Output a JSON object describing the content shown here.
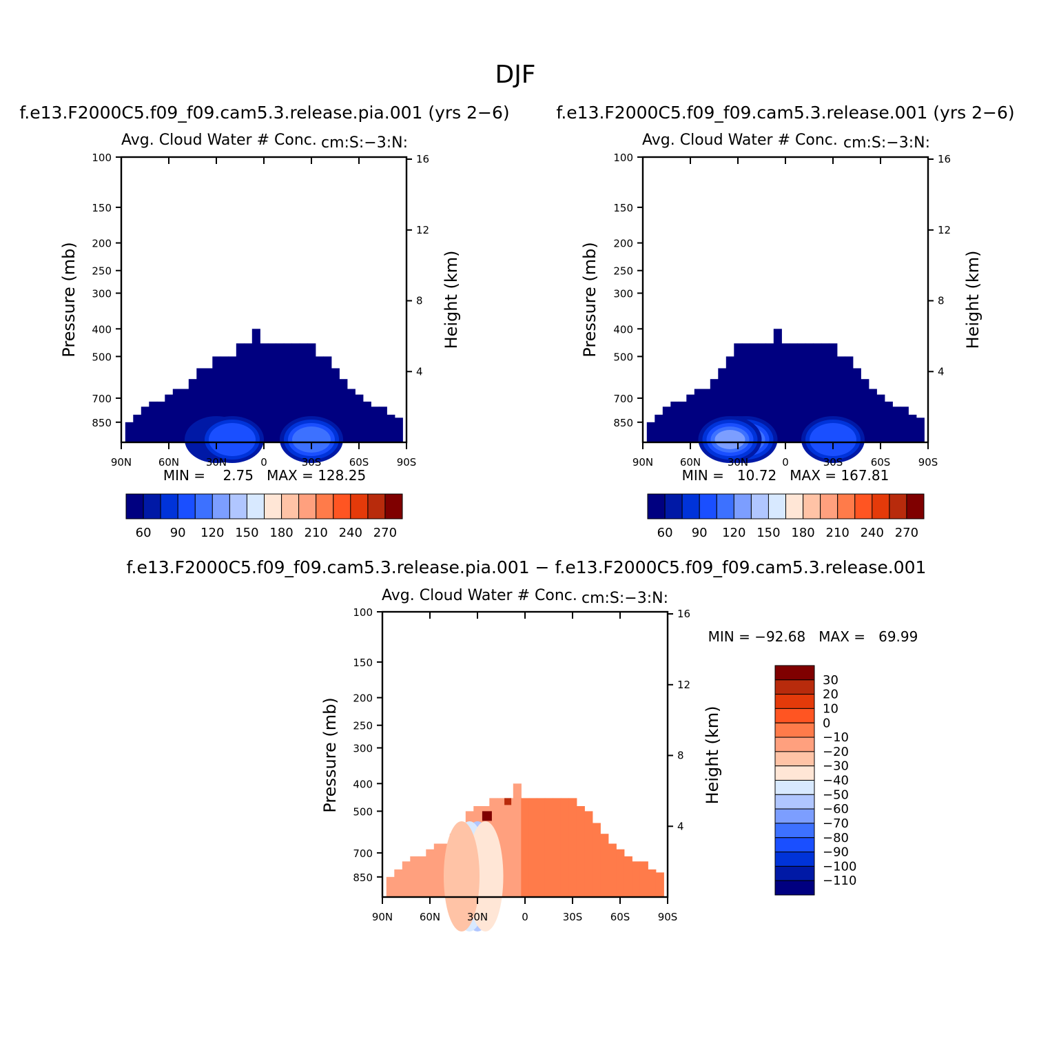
{
  "figure": {
    "title": "DJF",
    "colors": {
      "abs_palette": [
        "#000080",
        "#0019a6",
        "#0033d9",
        "#1a4fff",
        "#3d71ff",
        "#7c9eff",
        "#b0c6ff",
        "#d8e9ff",
        "#ffe6d6",
        "#ffc3a6",
        "#ffa07e",
        "#ff7b4a",
        "#ff5522",
        "#e43a0a",
        "#b82b0c",
        "#7f0000"
      ],
      "diff_palette": [
        "#7f0000",
        "#b82b0c",
        "#e43a0a",
        "#ff5522",
        "#ff7b4a",
        "#ffa07e",
        "#ffc3a6",
        "#ffe6d6",
        "#d8e9ff",
        "#b0c6ff",
        "#7c9eff",
        "#3d71ff",
        "#1a4fff",
        "#0033d9",
        "#0019a6",
        "#000080"
      ]
    }
  },
  "panels": [
    {
      "case_title": "f.e13.F2000C5.f09_f09.cam5.3.release.pia.001 (yrs 2−6)",
      "left_title": "Avg. Cloud Water # Conc.",
      "right_title": "cm:S:−3:N:",
      "ylabel": "Pressure (mb)",
      "ylabel_right": "Height (km)",
      "min_max": "MIN =    2.75   MAX = 128.25"
    },
    {
      "case_title": "f.e13.F2000C5.f09_f09.cam5.3.release.001 (yrs 2−6)",
      "left_title": "Avg. Cloud Water # Conc.",
      "right_title": "cm:S:−3:N:",
      "ylabel": "Pressure (mb)",
      "ylabel_right": "Height (km)",
      "min_max": "MIN =   10.72   MAX = 167.81"
    },
    {
      "case_title": "f.e13.F2000C5.f09_f09.cam5.3.release.pia.001 − f.e13.F2000C5.f09_f09.cam5.3.release.001",
      "left_title": "Avg. Cloud Water # Conc.",
      "right_title": "cm:S:−3:N:",
      "ylabel": "Pressure (mb)",
      "ylabel_right": "Height (km)",
      "min_max": "MIN = −92.68   MAX =   69.99"
    }
  ],
  "chart_data": [
    {
      "type": "heatmap",
      "title": "Avg. Cloud Water # Conc.",
      "xlabel": "",
      "ylabel": "Pressure (mb)",
      "ylabel_right": "Height (km)",
      "x_ticks": [
        "90N",
        "60N",
        "30N",
        "0",
        "30S",
        "60S",
        "90S"
      ],
      "y_ticks": [
        100,
        150,
        200,
        250,
        300,
        400,
        500,
        700,
        850
      ],
      "y_ticks_right": [
        16,
        12,
        8,
        4
      ],
      "ylim": [
        100,
        1000
      ],
      "y_scale": "log",
      "colorbar_labels": [
        "60",
        "90",
        "120",
        "150",
        "180",
        "210",
        "240",
        "270"
      ],
      "min": 2.75,
      "max": 128.25,
      "field_top_pressure": [
        [
          85,
          850
        ],
        [
          80,
          800
        ],
        [
          75,
          750
        ],
        [
          70,
          720
        ],
        [
          65,
          720
        ],
        [
          60,
          680
        ],
        [
          55,
          650
        ],
        [
          50,
          650
        ],
        [
          45,
          600
        ],
        [
          40,
          550
        ],
        [
          35,
          550
        ],
        [
          30,
          500
        ],
        [
          25,
          500
        ],
        [
          20,
          500
        ],
        [
          15,
          450
        ],
        [
          10,
          450
        ],
        [
          5,
          400
        ],
        [
          0,
          450
        ],
        [
          -5,
          450
        ],
        [
          -10,
          450
        ],
        [
          -15,
          450
        ],
        [
          -20,
          450
        ],
        [
          -25,
          450
        ],
        [
          -30,
          450
        ],
        [
          -35,
          500
        ],
        [
          -40,
          500
        ],
        [
          -45,
          550
        ],
        [
          -50,
          600
        ],
        [
          -55,
          650
        ],
        [
          -60,
          680
        ],
        [
          -65,
          720
        ],
        [
          -70,
          750
        ],
        [
          -75,
          750
        ],
        [
          -80,
          800
        ],
        [
          -85,
          820
        ]
      ]
    },
    {
      "type": "heatmap",
      "title": "Avg. Cloud Water # Conc.",
      "xlabel": "",
      "ylabel": "Pressure (mb)",
      "ylabel_right": "Height (km)",
      "x_ticks": [
        "90N",
        "60N",
        "30N",
        "0",
        "30S",
        "60S",
        "90S"
      ],
      "y_ticks": [
        100,
        150,
        200,
        250,
        300,
        400,
        500,
        700,
        850
      ],
      "y_ticks_right": [
        16,
        12,
        8,
        4
      ],
      "ylim": [
        100,
        1000
      ],
      "y_scale": "log",
      "colorbar_labels": [
        "60",
        "90",
        "120",
        "150",
        "180",
        "210",
        "240",
        "270"
      ],
      "min": 10.72,
      "max": 167.81,
      "field_top_pressure": [
        [
          85,
          850
        ],
        [
          80,
          800
        ],
        [
          75,
          750
        ],
        [
          70,
          720
        ],
        [
          65,
          720
        ],
        [
          60,
          680
        ],
        [
          55,
          650
        ],
        [
          50,
          650
        ],
        [
          45,
          600
        ],
        [
          40,
          550
        ],
        [
          35,
          500
        ],
        [
          30,
          450
        ],
        [
          25,
          450
        ],
        [
          20,
          450
        ],
        [
          15,
          450
        ],
        [
          10,
          450
        ],
        [
          5,
          400
        ],
        [
          0,
          450
        ],
        [
          -5,
          450
        ],
        [
          -10,
          450
        ],
        [
          -15,
          450
        ],
        [
          -20,
          450
        ],
        [
          -25,
          450
        ],
        [
          -30,
          450
        ],
        [
          -35,
          500
        ],
        [
          -40,
          500
        ],
        [
          -45,
          550
        ],
        [
          -50,
          600
        ],
        [
          -55,
          650
        ],
        [
          -60,
          680
        ],
        [
          -65,
          720
        ],
        [
          -70,
          750
        ],
        [
          -75,
          750
        ],
        [
          -80,
          800
        ],
        [
          -85,
          820
        ]
      ]
    },
    {
      "type": "heatmap",
      "title": "Avg. Cloud Water # Conc.",
      "xlabel": "",
      "ylabel": "Pressure (mb)",
      "ylabel_right": "Height (km)",
      "x_ticks": [
        "90N",
        "60N",
        "30N",
        "0",
        "30S",
        "60S",
        "90S"
      ],
      "y_ticks": [
        100,
        150,
        200,
        250,
        300,
        400,
        500,
        700,
        850
      ],
      "y_ticks_right": [
        16,
        12,
        8,
        4
      ],
      "ylim": [
        100,
        1000
      ],
      "y_scale": "log",
      "colorbar_labels": [
        "30",
        "20",
        "10",
        "0",
        "−10",
        "−20",
        "−30",
        "−40",
        "−50",
        "−60",
        "−70",
        "−80",
        "−90",
        "−100",
        "−110"
      ],
      "min": -92.68,
      "max": 69.99,
      "field_top_pressure": [
        [
          85,
          850
        ],
        [
          80,
          800
        ],
        [
          75,
          750
        ],
        [
          70,
          720
        ],
        [
          65,
          720
        ],
        [
          60,
          680
        ],
        [
          55,
          650
        ],
        [
          50,
          650
        ],
        [
          45,
          600
        ],
        [
          40,
          550
        ],
        [
          35,
          500
        ],
        [
          30,
          480
        ],
        [
          25,
          480
        ],
        [
          20,
          450
        ],
        [
          15,
          450
        ],
        [
          10,
          450
        ],
        [
          5,
          400
        ],
        [
          0,
          450
        ],
        [
          -5,
          450
        ],
        [
          -10,
          450
        ],
        [
          -15,
          450
        ],
        [
          -20,
          450
        ],
        [
          -25,
          450
        ],
        [
          -30,
          450
        ],
        [
          -35,
          480
        ],
        [
          -40,
          500
        ],
        [
          -45,
          550
        ],
        [
          -50,
          600
        ],
        [
          -55,
          650
        ],
        [
          -60,
          680
        ],
        [
          -65,
          720
        ],
        [
          -70,
          750
        ],
        [
          -75,
          750
        ],
        [
          -80,
          800
        ],
        [
          -85,
          820
        ]
      ]
    }
  ]
}
